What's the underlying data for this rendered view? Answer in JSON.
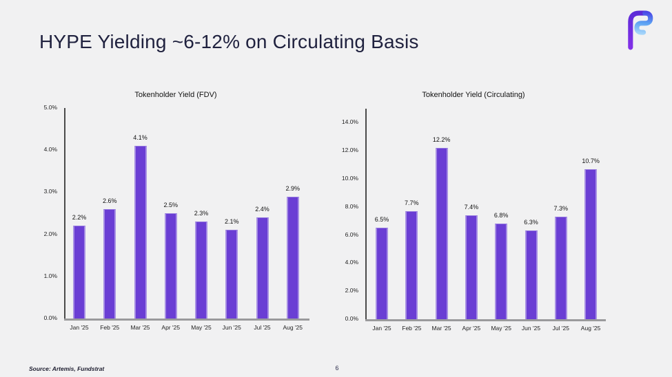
{
  "slide": {
    "title": "HYPE Yielding ~6-12% on Circulating Basis",
    "source": "Source: Artemis, Fundstrat",
    "page_number": "6",
    "logo": "fundstrat-f-logo"
  },
  "colors": {
    "background": "#f1f1f2",
    "title_text": "#20223f",
    "bar_fill": "#6a3ed4",
    "bar_edge_highlight": "#a78fe4",
    "axis_line": "#4a4a4a",
    "baseline": "#9a9a9c",
    "logo_purple": "#7031e0",
    "logo_blue": "#8ec8f8"
  },
  "chart_data": [
    {
      "type": "bar",
      "title": "Tokenholder Yield (FDV)",
      "categories": [
        "Jan '25",
        "Feb '25",
        "Mar '25",
        "Apr '25",
        "May '25",
        "Jun '25",
        "Jul '25",
        "Aug '25"
      ],
      "values": [
        2.2,
        2.6,
        4.1,
        2.5,
        2.3,
        2.1,
        2.4,
        2.9
      ],
      "value_labels": [
        "2.2%",
        "2.6%",
        "4.1%",
        "2.5%",
        "2.3%",
        "2.1%",
        "2.4%",
        "2.9%"
      ],
      "yticks": [
        "0.0%",
        "1.0%",
        "2.0%",
        "3.0%",
        "4.0%",
        "5.0%"
      ],
      "ytick_values": [
        0,
        1,
        2,
        3,
        4,
        5
      ],
      "xlabel": "",
      "ylabel": "",
      "ylim": [
        0,
        5
      ],
      "grid": false,
      "legend": "none"
    },
    {
      "type": "bar",
      "title": "Tokenholder Yield (Circulating)",
      "categories": [
        "Jan '25",
        "Feb '25",
        "Mar '25",
        "Apr '25",
        "May '25",
        "Jun '25",
        "Jul '25",
        "Aug '25"
      ],
      "values": [
        6.5,
        7.7,
        12.2,
        7.4,
        6.8,
        6.3,
        7.3,
        10.7
      ],
      "value_labels": [
        "6.5%",
        "7.7%",
        "12.2%",
        "7.4%",
        "6.8%",
        "6.3%",
        "7.3%",
        "10.7%"
      ],
      "yticks": [
        "0.0%",
        "2.0%",
        "4.0%",
        "6.0%",
        "8.0%",
        "10.0%",
        "12.0%",
        "14.0%"
      ],
      "ytick_values": [
        0,
        2,
        4,
        6,
        8,
        10,
        12,
        14
      ],
      "xlabel": "",
      "ylabel": "",
      "ylim": [
        0,
        15
      ],
      "grid": false,
      "legend": "none"
    }
  ]
}
